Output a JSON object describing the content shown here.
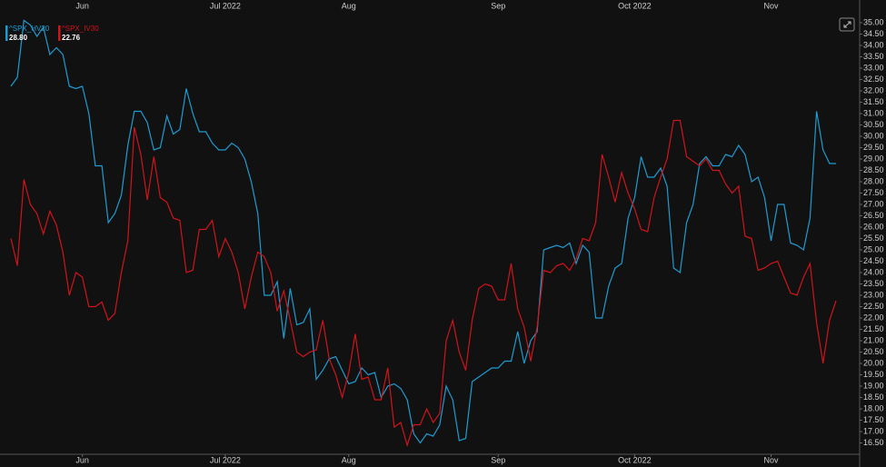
{
  "chart_data": {
    "type": "line",
    "categories": [
      null,
      null,
      null,
      null,
      null,
      null,
      null,
      null,
      null,
      null,
      null,
      "Jun",
      null,
      null,
      null,
      null,
      null,
      null,
      null,
      null,
      null,
      null,
      null,
      null,
      null,
      null,
      null,
      null,
      null,
      null,
      null,
      null,
      null,
      "Jul 2022",
      null,
      null,
      null,
      null,
      null,
      null,
      null,
      null,
      null,
      null,
      null,
      null,
      null,
      null,
      null,
      null,
      null,
      null,
      "Aug",
      null,
      null,
      null,
      null,
      null,
      null,
      null,
      null,
      null,
      null,
      null,
      null,
      null,
      null,
      null,
      null,
      null,
      null,
      null,
      null,
      null,
      null,
      "Sep",
      null,
      null,
      null,
      null,
      null,
      null,
      null,
      null,
      null,
      null,
      null,
      null,
      null,
      null,
      null,
      null,
      null,
      null,
      null,
      null,
      "Oct 2022",
      null,
      null,
      null,
      null,
      null,
      null,
      null,
      null,
      null,
      null,
      null,
      null,
      null,
      null,
      null,
      null,
      null,
      null,
      null,
      null,
      "Nov",
      null,
      null,
      null,
      null,
      null,
      null,
      null,
      null,
      null,
      null
    ],
    "series": [
      {
        "name": "^SPX_HV20",
        "color": "#1f9bd1",
        "legend_value": "28.80",
        "values": [
          32.2,
          32.6,
          35.1,
          34.9,
          34.4,
          34.8,
          33.6,
          33.9,
          33.6,
          32.2,
          32.1,
          32.2,
          31.0,
          28.7,
          28.7,
          26.2,
          26.6,
          27.4,
          29.6,
          31.1,
          31.1,
          30.6,
          29.4,
          29.5,
          30.9,
          30.1,
          30.3,
          32.1,
          31.0,
          30.2,
          30.2,
          29.7,
          29.4,
          29.4,
          29.7,
          29.5,
          29.0,
          28.0,
          26.6,
          23.0,
          23.0,
          23.6,
          21.1,
          23.3,
          21.7,
          21.8,
          22.4,
          19.3,
          19.7,
          20.2,
          20.3,
          19.7,
          19.1,
          19.2,
          19.8,
          19.5,
          19.6,
          18.5,
          19.0,
          19.1,
          18.9,
          18.4,
          16.9,
          16.5,
          16.9,
          16.8,
          17.3,
          19.0,
          18.4,
          16.6,
          16.7,
          19.2,
          19.4,
          19.6,
          19.8,
          19.8,
          20.1,
          20.1,
          21.4,
          20.0,
          21.0,
          21.4,
          25.0,
          25.1,
          25.2,
          25.1,
          25.3,
          24.4,
          25.2,
          24.9,
          22.0,
          22.0,
          23.4,
          24.2,
          24.4,
          26.4,
          27.3,
          29.1,
          28.2,
          28.2,
          28.6,
          27.8,
          24.2,
          24.0,
          26.2,
          27.0,
          28.8,
          29.1,
          28.7,
          28.7,
          29.2,
          29.1,
          29.6,
          29.2,
          28.0,
          28.2,
          27.3,
          25.4,
          27.0,
          27.0,
          25.3,
          25.2,
          25.0,
          26.4,
          31.1,
          29.4,
          28.8,
          28.8
        ]
      },
      {
        "name": "^SPX_IV30",
        "color": "#d0141a",
        "legend_value": "22.76",
        "values": [
          25.5,
          24.3,
          28.1,
          27.0,
          26.6,
          25.7,
          26.7,
          26.1,
          24.9,
          23.0,
          24.0,
          23.8,
          22.5,
          22.5,
          22.7,
          21.9,
          22.2,
          24.0,
          25.4,
          30.4,
          29.2,
          27.2,
          29.1,
          27.3,
          27.1,
          26.4,
          26.3,
          24.0,
          24.1,
          25.9,
          25.9,
          26.3,
          24.7,
          25.5,
          24.9,
          24.0,
          22.4,
          23.8,
          24.9,
          24.7,
          24.0,
          22.3,
          23.2,
          21.9,
          20.5,
          20.3,
          20.5,
          20.6,
          21.9,
          20.2,
          19.5,
          18.5,
          19.6,
          21.3,
          19.3,
          19.4,
          18.4,
          18.4,
          19.8,
          17.2,
          17.4,
          16.4,
          17.3,
          17.3,
          18.0,
          17.4,
          17.8,
          21.0,
          21.9,
          20.5,
          19.7,
          21.9,
          23.3,
          23.5,
          23.4,
          22.8,
          22.8,
          24.4,
          22.4,
          21.6,
          20.1,
          21.6,
          24.1,
          24.0,
          24.3,
          24.4,
          24.1,
          24.6,
          25.5,
          25.4,
          26.2,
          29.2,
          28.2,
          27.1,
          28.4,
          27.5,
          26.8,
          25.9,
          25.8,
          27.3,
          28.2,
          29.0,
          30.7,
          30.7,
          29.1,
          28.9,
          28.7,
          29.0,
          28.5,
          28.5,
          27.9,
          27.5,
          27.8,
          25.6,
          25.5,
          24.1,
          24.2,
          24.4,
          24.5,
          23.8,
          23.1,
          23.0,
          23.8,
          24.4,
          21.8,
          20.0,
          21.9,
          22.76
        ]
      }
    ],
    "ylim": [
      16,
      35.5
    ],
    "yticks": [
      {
        "value": 16.5,
        "label": "16.50"
      },
      {
        "value": 17,
        "label": "17.00"
      },
      {
        "value": 17.5,
        "label": "17.50"
      },
      {
        "value": 18,
        "label": "18.00"
      },
      {
        "value": 18.5,
        "label": "18.50"
      },
      {
        "value": 19,
        "label": "19.00"
      },
      {
        "value": 19.5,
        "label": "19.50"
      },
      {
        "value": 20,
        "label": "20.00"
      },
      {
        "value": 20.5,
        "label": "20.50"
      },
      {
        "value": 21,
        "label": "21.00"
      },
      {
        "value": 21.5,
        "label": "21.50"
      },
      {
        "value": 22,
        "label": "22.00"
      },
      {
        "value": 22.5,
        "label": "22.50"
      },
      {
        "value": 23,
        "label": "23.00"
      },
      {
        "value": 23.5,
        "label": "23.50"
      },
      {
        "value": 24,
        "label": "24.00"
      },
      {
        "value": 24.5,
        "label": "24.50"
      },
      {
        "value": 25,
        "label": "25.00"
      },
      {
        "value": 25.5,
        "label": "25.50"
      },
      {
        "value": 26,
        "label": "26.00"
      },
      {
        "value": 26.5,
        "label": "26.50"
      },
      {
        "value": 27,
        "label": "27.00"
      },
      {
        "value": 27.5,
        "label": "27.50"
      },
      {
        "value": 28,
        "label": "28.00"
      },
      {
        "value": 28.5,
        "label": "28.50"
      },
      {
        "value": 29,
        "label": "29.00"
      },
      {
        "value": 29.5,
        "label": "29.50"
      },
      {
        "value": 30,
        "label": "30.00"
      },
      {
        "value": 30.5,
        "label": "30.50"
      },
      {
        "value": 31,
        "label": "31.00"
      },
      {
        "value": 31.5,
        "label": "31.50"
      },
      {
        "value": 32,
        "label": "32.00"
      },
      {
        "value": 32.5,
        "label": "32.50"
      },
      {
        "value": 33,
        "label": "33.00"
      },
      {
        "value": 33.5,
        "label": "33.50"
      },
      {
        "value": 34,
        "label": "34.00"
      },
      {
        "value": 34.5,
        "label": "34.50"
      },
      {
        "value": 35,
        "label": "35.00"
      }
    ],
    "grid": false
  }
}
